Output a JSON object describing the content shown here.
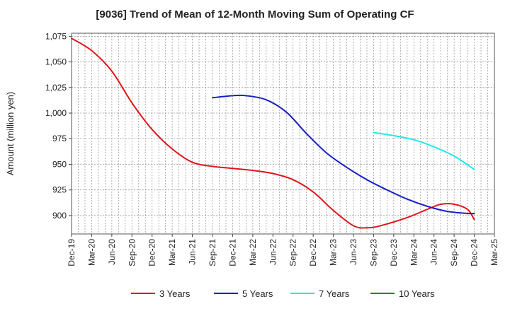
{
  "chart_data": {
    "type": "line",
    "title": "[9036]  Trend of Mean of 12-Month Moving Sum of Operating CF",
    "xlabel": "",
    "ylabel": "Amount (million yen)",
    "ylim": [
      882,
      1078
    ],
    "yticks": [
      900,
      925,
      950,
      975,
      1000,
      1025,
      1050,
      1075
    ],
    "ytick_labels": [
      "900",
      "925",
      "950",
      "975",
      "1,000",
      "1,025",
      "1,050",
      "1,075"
    ],
    "x_tick_labels": [
      "Dec-19",
      "Mar-20",
      "Jun-20",
      "Sep-20",
      "Dec-20",
      "Mar-21",
      "Jun-21",
      "Sep-21",
      "Dec-21",
      "Mar-22",
      "Jun-22",
      "Sep-22",
      "Dec-22",
      "Mar-23",
      "Jun-23",
      "Sep-23",
      "Dec-23",
      "Mar-24",
      "Jun-24",
      "Sep-24",
      "Dec-24",
      "Mar-25"
    ],
    "x_range_months": [
      0,
      63
    ],
    "grid": true,
    "legend_position": "bottom",
    "series": [
      {
        "name": "3 Years",
        "color": "#e0161b",
        "points": [
          [
            0,
            1073
          ],
          [
            3,
            1061
          ],
          [
            6,
            1041
          ],
          [
            9,
            1010
          ],
          [
            12,
            984
          ],
          [
            15,
            965
          ],
          [
            18,
            952
          ],
          [
            21,
            948
          ],
          [
            24,
            946
          ],
          [
            27,
            944
          ],
          [
            30,
            941
          ],
          [
            33,
            935
          ],
          [
            36,
            923
          ],
          [
            39,
            905
          ],
          [
            42,
            890
          ],
          [
            44,
            888
          ],
          [
            46,
            890
          ],
          [
            50,
            898
          ],
          [
            53,
            906
          ],
          [
            55,
            911
          ],
          [
            57,
            911
          ],
          [
            59,
            906
          ],
          [
            60,
            896
          ]
        ]
      },
      {
        "name": "5 Years",
        "color": "#1620c4",
        "points": [
          [
            21,
            1015
          ],
          [
            24,
            1017
          ],
          [
            26,
            1017
          ],
          [
            29,
            1013
          ],
          [
            32,
            1001
          ],
          [
            35,
            980
          ],
          [
            38,
            961
          ],
          [
            41,
            947
          ],
          [
            44,
            935
          ],
          [
            47,
            925
          ],
          [
            50,
            916
          ],
          [
            53,
            909
          ],
          [
            56,
            904
          ],
          [
            59,
            902
          ],
          [
            60,
            902
          ]
        ]
      },
      {
        "name": "7 Years",
        "color": "#22e8ea",
        "points": [
          [
            45,
            981
          ],
          [
            48,
            978
          ],
          [
            51,
            974
          ],
          [
            54,
            967
          ],
          [
            57,
            958
          ],
          [
            60,
            945
          ]
        ]
      },
      {
        "name": "10 Years",
        "color": "#1d8c1d",
        "points": []
      }
    ]
  }
}
